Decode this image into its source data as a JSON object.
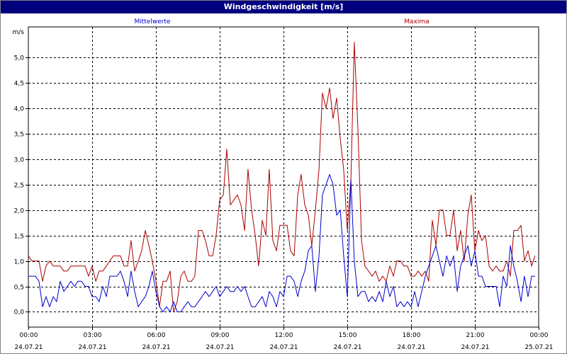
{
  "window": {
    "title": "Windgeschwindigkeit [m/s]"
  },
  "colors": {
    "mittelwerte": "#0000cc",
    "maxima": "#aa0000",
    "grid": "#000000",
    "titlebar": "#00007f"
  },
  "chart_data": {
    "type": "line",
    "title": "Windgeschwindigkeit [m/s]",
    "ylabel": "m/s",
    "xlabel": "",
    "ylim": [
      -0.3,
      5.6
    ],
    "xlim_hours": [
      0,
      24
    ],
    "grid": true,
    "grid_style": "dashed",
    "legend_placement": "top",
    "yticks": [
      {
        "v": 0.0,
        "label": "0,0"
      },
      {
        "v": 0.5,
        "label": "0,5"
      },
      {
        "v": 1.0,
        "label": "1,0"
      },
      {
        "v": 1.5,
        "label": "1,5"
      },
      {
        "v": 2.0,
        "label": "2,0"
      },
      {
        "v": 2.5,
        "label": "2,5"
      },
      {
        "v": 3.0,
        "label": "3,0"
      },
      {
        "v": 3.5,
        "label": "3,5"
      },
      {
        "v": 4.0,
        "label": "4,0"
      },
      {
        "v": 4.5,
        "label": "4,5"
      },
      {
        "v": 5.0,
        "label": "5,0"
      }
    ],
    "xticks": [
      {
        "h": 0,
        "time": "00:00",
        "date": "24.07.21"
      },
      {
        "h": 3,
        "time": "03:00",
        "date": "24.07.21"
      },
      {
        "h": 6,
        "time": "06:00",
        "date": "24.07.21"
      },
      {
        "h": 9,
        "time": "09:00",
        "date": "24.07.21"
      },
      {
        "h": 12,
        "time": "12:00",
        "date": "24.07.21"
      },
      {
        "h": 15,
        "time": "15:00",
        "date": "24.07.21"
      },
      {
        "h": 18,
        "time": "18:00",
        "date": "24.07.21"
      },
      {
        "h": 21,
        "time": "21:00",
        "date": "24.07.21"
      },
      {
        "h": 24,
        "time": "00:00",
        "date": "25.07.21"
      }
    ],
    "series": [
      {
        "name": "Mittelwerte",
        "color": "#0000cc",
        "legend_position": "left",
        "points": [
          [
            0.0,
            0.7
          ],
          [
            0.17,
            0.7
          ],
          [
            0.33,
            0.7
          ],
          [
            0.5,
            0.6
          ],
          [
            0.67,
            0.1
          ],
          [
            0.83,
            0.3
          ],
          [
            1.0,
            0.1
          ],
          [
            1.17,
            0.3
          ],
          [
            1.33,
            0.2
          ],
          [
            1.5,
            0.6
          ],
          [
            1.67,
            0.4
          ],
          [
            1.83,
            0.5
          ],
          [
            2.0,
            0.6
          ],
          [
            2.17,
            0.5
          ],
          [
            2.33,
            0.6
          ],
          [
            2.5,
            0.6
          ],
          [
            2.67,
            0.5
          ],
          [
            2.83,
            0.5
          ],
          [
            3.0,
            0.3
          ],
          [
            3.17,
            0.3
          ],
          [
            3.33,
            0.2
          ],
          [
            3.5,
            0.5
          ],
          [
            3.67,
            0.3
          ],
          [
            3.83,
            0.7
          ],
          [
            4.0,
            0.7
          ],
          [
            4.17,
            0.7
          ],
          [
            4.33,
            0.8
          ],
          [
            4.5,
            0.6
          ],
          [
            4.67,
            0.3
          ],
          [
            4.83,
            0.8
          ],
          [
            5.0,
            0.4
          ],
          [
            5.17,
            0.1
          ],
          [
            5.33,
            0.2
          ],
          [
            5.5,
            0.3
          ],
          [
            5.67,
            0.5
          ],
          [
            5.83,
            0.8
          ],
          [
            6.0,
            0.4
          ],
          [
            6.17,
            0.1
          ],
          [
            6.33,
            0.0
          ],
          [
            6.5,
            0.1
          ],
          [
            6.67,
            0.0
          ],
          [
            6.83,
            0.2
          ],
          [
            7.0,
            0.0
          ],
          [
            7.17,
            0.0
          ],
          [
            7.33,
            0.1
          ],
          [
            7.5,
            0.2
          ],
          [
            7.67,
            0.1
          ],
          [
            7.83,
            0.1
          ],
          [
            8.0,
            0.2
          ],
          [
            8.17,
            0.3
          ],
          [
            8.33,
            0.4
          ],
          [
            8.5,
            0.3
          ],
          [
            8.67,
            0.4
          ],
          [
            8.83,
            0.5
          ],
          [
            9.0,
            0.3
          ],
          [
            9.17,
            0.4
          ],
          [
            9.33,
            0.5
          ],
          [
            9.5,
            0.4
          ],
          [
            9.67,
            0.4
          ],
          [
            9.83,
            0.5
          ],
          [
            10.0,
            0.4
          ],
          [
            10.17,
            0.5
          ],
          [
            10.33,
            0.3
          ],
          [
            10.5,
            0.1
          ],
          [
            10.67,
            0.1
          ],
          [
            10.83,
            0.2
          ],
          [
            11.0,
            0.3
          ],
          [
            11.17,
            0.1
          ],
          [
            11.33,
            0.4
          ],
          [
            11.5,
            0.3
          ],
          [
            11.67,
            0.1
          ],
          [
            11.83,
            0.4
          ],
          [
            12.0,
            0.3
          ],
          [
            12.17,
            0.7
          ],
          [
            12.33,
            0.7
          ],
          [
            12.5,
            0.6
          ],
          [
            12.67,
            0.3
          ],
          [
            12.83,
            0.6
          ],
          [
            13.0,
            0.8
          ],
          [
            13.17,
            1.2
          ],
          [
            13.33,
            1.3
          ],
          [
            13.5,
            0.4
          ],
          [
            13.67,
            1.1
          ],
          [
            13.83,
            2.3
          ],
          [
            14.0,
            2.5
          ],
          [
            14.17,
            2.7
          ],
          [
            14.33,
            2.5
          ],
          [
            14.5,
            1.9
          ],
          [
            14.67,
            2.0
          ],
          [
            14.83,
            1.1
          ],
          [
            15.0,
            0.3
          ],
          [
            15.17,
            2.6
          ],
          [
            15.33,
            1.0
          ],
          [
            15.5,
            0.3
          ],
          [
            15.67,
            0.4
          ],
          [
            15.83,
            0.4
          ],
          [
            16.0,
            0.2
          ],
          [
            16.17,
            0.3
          ],
          [
            16.33,
            0.2
          ],
          [
            16.5,
            0.4
          ],
          [
            16.67,
            0.2
          ],
          [
            16.83,
            0.6
          ],
          [
            17.0,
            0.3
          ],
          [
            17.17,
            0.5
          ],
          [
            17.33,
            0.1
          ],
          [
            17.5,
            0.2
          ],
          [
            17.67,
            0.1
          ],
          [
            17.83,
            0.2
          ],
          [
            18.0,
            0.1
          ],
          [
            18.17,
            0.4
          ],
          [
            18.33,
            0.1
          ],
          [
            18.5,
            0.4
          ],
          [
            18.67,
            0.7
          ],
          [
            18.83,
            0.9
          ],
          [
            19.0,
            1.1
          ],
          [
            19.17,
            1.3
          ],
          [
            19.33,
            1.0
          ],
          [
            19.5,
            0.7
          ],
          [
            19.67,
            1.1
          ],
          [
            19.83,
            0.9
          ],
          [
            20.0,
            1.1
          ],
          [
            20.17,
            0.4
          ],
          [
            20.33,
            0.9
          ],
          [
            20.5,
            1.1
          ],
          [
            20.67,
            1.3
          ],
          [
            20.83,
            0.9
          ],
          [
            21.0,
            1.2
          ],
          [
            21.17,
            0.7
          ],
          [
            21.33,
            0.7
          ],
          [
            21.5,
            0.5
          ],
          [
            21.67,
            0.5
          ],
          [
            21.83,
            0.5
          ],
          [
            22.0,
            0.5
          ],
          [
            22.17,
            0.1
          ],
          [
            22.33,
            0.7
          ],
          [
            22.5,
            0.5
          ],
          [
            22.67,
            1.3
          ],
          [
            22.83,
            0.9
          ],
          [
            23.0,
            0.6
          ],
          [
            23.17,
            0.2
          ],
          [
            23.33,
            0.7
          ],
          [
            23.5,
            0.3
          ],
          [
            23.67,
            0.7
          ],
          [
            23.83,
            0.7
          ]
        ]
      },
      {
        "name": "Maxima",
        "color": "#aa0000",
        "legend_position": "right",
        "points": [
          [
            0.0,
            1.1
          ],
          [
            0.17,
            1.0
          ],
          [
            0.33,
            1.0
          ],
          [
            0.5,
            1.0
          ],
          [
            0.67,
            0.6
          ],
          [
            0.83,
            0.9
          ],
          [
            1.0,
            1.0
          ],
          [
            1.17,
            0.9
          ],
          [
            1.33,
            0.9
          ],
          [
            1.5,
            0.9
          ],
          [
            1.67,
            0.8
          ],
          [
            1.83,
            0.8
          ],
          [
            2.0,
            0.9
          ],
          [
            2.17,
            0.9
          ],
          [
            2.33,
            0.9
          ],
          [
            2.5,
            0.9
          ],
          [
            2.67,
            0.9
          ],
          [
            2.83,
            0.7
          ],
          [
            3.0,
            0.9
          ],
          [
            3.17,
            0.6
          ],
          [
            3.33,
            0.8
          ],
          [
            3.5,
            0.8
          ],
          [
            3.67,
            0.9
          ],
          [
            3.83,
            1.0
          ],
          [
            4.0,
            1.1
          ],
          [
            4.17,
            1.1
          ],
          [
            4.33,
            1.1
          ],
          [
            4.5,
            0.9
          ],
          [
            4.67,
            0.9
          ],
          [
            4.83,
            1.4
          ],
          [
            5.0,
            0.8
          ],
          [
            5.17,
            1.0
          ],
          [
            5.33,
            1.2
          ],
          [
            5.5,
            1.6
          ],
          [
            5.67,
            1.3
          ],
          [
            5.83,
            1.0
          ],
          [
            6.0,
            0.6
          ],
          [
            6.17,
            0.1
          ],
          [
            6.33,
            0.6
          ],
          [
            6.5,
            0.6
          ],
          [
            6.67,
            0.8
          ],
          [
            6.83,
            0.0
          ],
          [
            7.0,
            0.2
          ],
          [
            7.17,
            0.7
          ],
          [
            7.33,
            0.8
          ],
          [
            7.5,
            0.6
          ],
          [
            7.67,
            0.6
          ],
          [
            7.83,
            0.7
          ],
          [
            8.0,
            1.6
          ],
          [
            8.17,
            1.6
          ],
          [
            8.33,
            1.4
          ],
          [
            8.5,
            1.1
          ],
          [
            8.67,
            1.1
          ],
          [
            8.83,
            1.5
          ],
          [
            9.0,
            2.2
          ],
          [
            9.17,
            2.3
          ],
          [
            9.33,
            3.2
          ],
          [
            9.5,
            2.1
          ],
          [
            9.67,
            2.2
          ],
          [
            9.83,
            2.3
          ],
          [
            10.0,
            2.1
          ],
          [
            10.17,
            1.6
          ],
          [
            10.33,
            2.8
          ],
          [
            10.5,
            2.0
          ],
          [
            10.67,
            1.5
          ],
          [
            10.83,
            0.9
          ],
          [
            11.0,
            1.8
          ],
          [
            11.17,
            1.5
          ],
          [
            11.33,
            2.8
          ],
          [
            11.5,
            1.4
          ],
          [
            11.67,
            1.2
          ],
          [
            11.83,
            1.7
          ],
          [
            12.0,
            1.7
          ],
          [
            12.17,
            1.7
          ],
          [
            12.33,
            1.2
          ],
          [
            12.5,
            1.1
          ],
          [
            12.67,
            2.3
          ],
          [
            12.83,
            2.7
          ],
          [
            13.0,
            2.1
          ],
          [
            13.17,
            1.9
          ],
          [
            13.33,
            1.3
          ],
          [
            13.5,
            2.0
          ],
          [
            13.67,
            2.8
          ],
          [
            13.83,
            4.3
          ],
          [
            14.0,
            4.0
          ],
          [
            14.17,
            4.4
          ],
          [
            14.33,
            3.8
          ],
          [
            14.5,
            4.2
          ],
          [
            14.67,
            3.4
          ],
          [
            14.83,
            2.8
          ],
          [
            15.0,
            1.6
          ],
          [
            15.17,
            2.6
          ],
          [
            15.33,
            5.3
          ],
          [
            15.5,
            3.6
          ],
          [
            15.67,
            1.4
          ],
          [
            15.83,
            0.9
          ],
          [
            16.0,
            0.8
          ],
          [
            16.17,
            0.7
          ],
          [
            16.33,
            0.8
          ],
          [
            16.5,
            0.6
          ],
          [
            16.67,
            0.7
          ],
          [
            16.83,
            0.6
          ],
          [
            17.0,
            0.9
          ],
          [
            17.17,
            0.7
          ],
          [
            17.33,
            1.0
          ],
          [
            17.5,
            1.0
          ],
          [
            17.67,
            0.9
          ],
          [
            17.83,
            0.9
          ],
          [
            18.0,
            0.7
          ],
          [
            18.17,
            0.7
          ],
          [
            18.33,
            0.8
          ],
          [
            18.5,
            0.7
          ],
          [
            18.67,
            0.8
          ],
          [
            18.83,
            0.6
          ],
          [
            19.0,
            1.8
          ],
          [
            19.17,
            1.3
          ],
          [
            19.33,
            2.0
          ],
          [
            19.5,
            2.0
          ],
          [
            19.67,
            1.5
          ],
          [
            19.83,
            1.5
          ],
          [
            20.0,
            2.0
          ],
          [
            20.17,
            1.2
          ],
          [
            20.33,
            1.6
          ],
          [
            20.5,
            1.0
          ],
          [
            20.67,
            1.9
          ],
          [
            20.83,
            2.3
          ],
          [
            21.0,
            1.2
          ],
          [
            21.17,
            1.6
          ],
          [
            21.33,
            1.4
          ],
          [
            21.5,
            1.5
          ],
          [
            21.67,
            0.9
          ],
          [
            21.83,
            0.8
          ],
          [
            22.0,
            0.9
          ],
          [
            22.17,
            0.8
          ],
          [
            22.33,
            0.8
          ],
          [
            22.5,
            1.0
          ],
          [
            22.67,
            0.7
          ],
          [
            22.83,
            1.6
          ],
          [
            23.0,
            1.6
          ],
          [
            23.17,
            1.7
          ],
          [
            23.33,
            1.0
          ],
          [
            23.5,
            1.2
          ],
          [
            23.67,
            0.9
          ],
          [
            23.83,
            1.1
          ]
        ]
      }
    ]
  }
}
